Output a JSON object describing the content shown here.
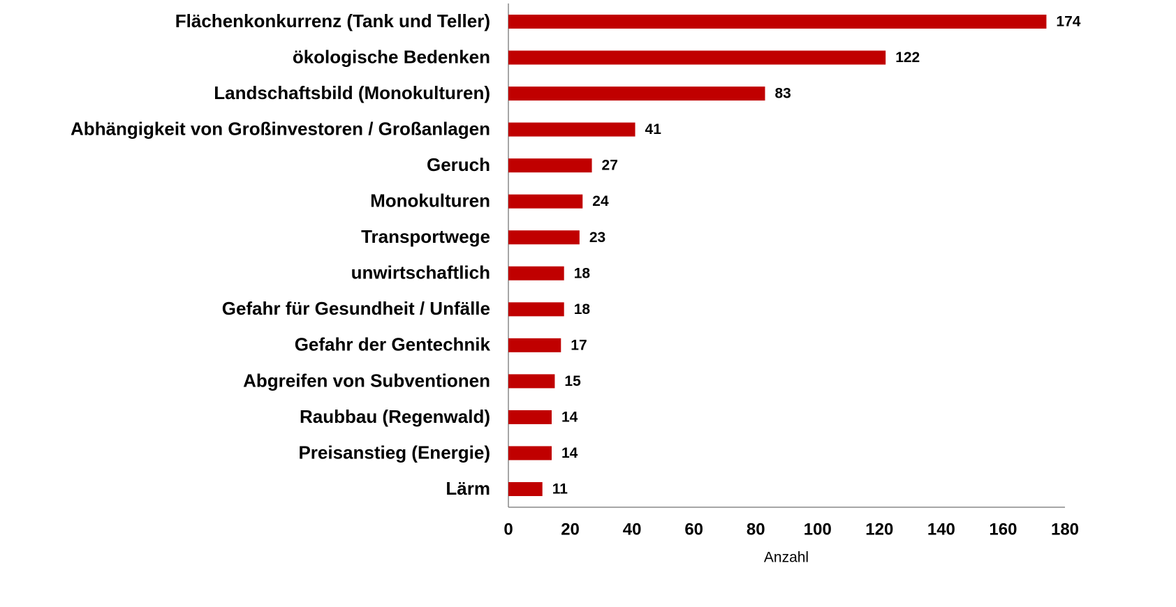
{
  "chart_data": {
    "type": "bar",
    "orientation": "horizontal",
    "categories": [
      "Flächenkonkurrenz (Tank und Teller)",
      "ökologische Bedenken",
      "Landschaftsbild (Monokulturen)",
      "Abhängigkeit von Großinvestoren / Großanlagen",
      "Geruch",
      "Monokulturen",
      "Transportwege",
      "unwirtschaftlich",
      "Gefahr für Gesundheit / Unfälle",
      "Gefahr der Gentechnik",
      "Abgreifen von Subventionen",
      "Raubbau (Regenwald)",
      "Preisanstieg (Energie)",
      "Lärm"
    ],
    "values": [
      174,
      122,
      83,
      41,
      27,
      24,
      23,
      18,
      18,
      17,
      15,
      14,
      14,
      11
    ],
    "color": "#c00000",
    "xlabel": "Anzahl",
    "xlim": [
      0,
      180
    ],
    "xticks": [
      0,
      20,
      40,
      60,
      80,
      100,
      120,
      140,
      160,
      180
    ],
    "grid": false
  }
}
